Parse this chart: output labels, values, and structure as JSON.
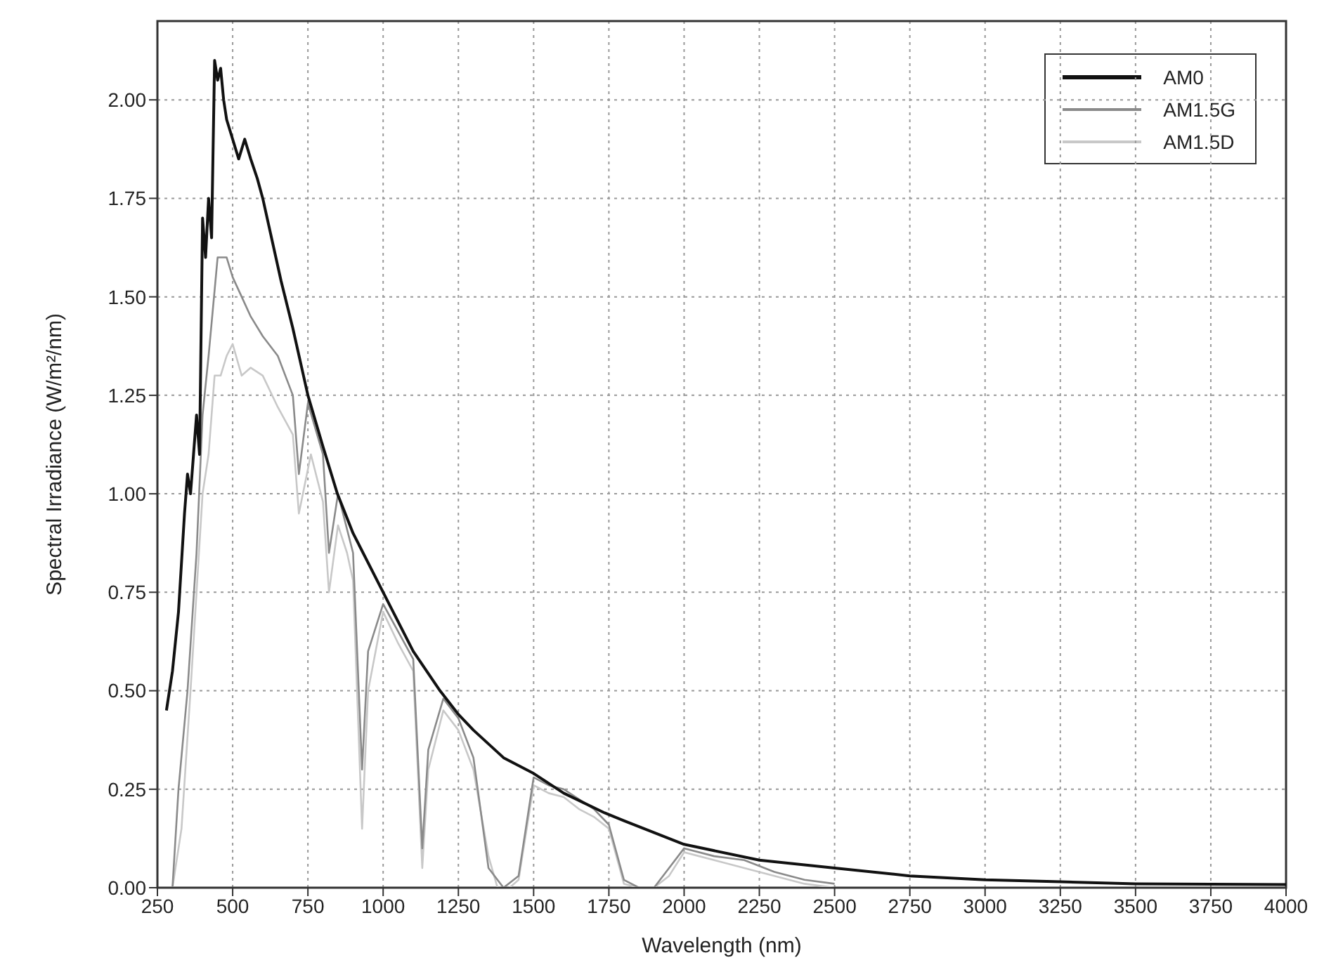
{
  "chart_data": {
    "type": "line",
    "xlabel": "Wavelength (nm)",
    "ylabel": "Spectral Irradiance (W/m²/nm)",
    "xlim": [
      250,
      4000
    ],
    "xticks": [
      250,
      500,
      750,
      1000,
      1250,
      1500,
      1750,
      2000,
      2250,
      2500,
      2750,
      3000,
      3250,
      3500,
      3750,
      4000
    ],
    "ylim": [
      0,
      2.2
    ],
    "yticks": [
      {
        "value": 0,
        "label": "0.00"
      },
      0.25,
      {
        "value": 0.5,
        "label": "0.50"
      },
      0.75,
      {
        "value": 1,
        "label": "1.00"
      },
      1.25,
      {
        "value": 1.5,
        "label": "1.50"
      },
      1.75,
      {
        "value": 2,
        "label": "2.00"
      }
    ],
    "grid": true,
    "legend": "top right",
    "marker": "none",
    "line_style": "solid",
    "series": [
      {
        "name": "AM1.5D",
        "color": "#c8c8c8",
        "x": [
          300,
          330,
          360,
          380,
          400,
          420,
          440,
          460,
          480,
          500,
          530,
          560,
          600,
          650,
          700,
          720,
          760,
          800,
          820,
          850,
          880,
          900,
          930,
          950,
          1000,
          1050,
          1100,
          1130,
          1150,
          1200,
          1250,
          1300,
          1350,
          1380,
          1420,
          1450,
          1500,
          1550,
          1600,
          1650,
          1700,
          1750,
          1800,
          1850,
          1900,
          1950,
          2000,
          2050,
          2100,
          2200,
          2300,
          2400,
          2500
        ],
        "values": [
          0,
          0.15,
          0.5,
          0.75,
          1.0,
          1.1,
          1.3,
          1.3,
          1.35,
          1.38,
          1.3,
          1.32,
          1.3,
          1.22,
          1.15,
          0.95,
          1.1,
          0.98,
          0.75,
          0.92,
          0.85,
          0.78,
          0.15,
          0.5,
          0.7,
          0.62,
          0.55,
          0.05,
          0.3,
          0.45,
          0.4,
          0.3,
          0.08,
          0,
          0,
          0.02,
          0.26,
          0.24,
          0.23,
          0.2,
          0.18,
          0.15,
          0.01,
          0,
          0,
          0.03,
          0.09,
          0.08,
          0.07,
          0.05,
          0.03,
          0.01,
          0
        ]
      },
      {
        "name": "AM1.5G",
        "color": "#8a8a8a",
        "x": [
          300,
          320,
          350,
          380,
          400,
          420,
          450,
          480,
          500,
          530,
          560,
          600,
          650,
          700,
          720,
          750,
          800,
          820,
          850,
          900,
          930,
          950,
          1000,
          1050,
          1100,
          1130,
          1150,
          1200,
          1250,
          1300,
          1350,
          1400,
          1450,
          1500,
          1550,
          1600,
          1700,
          1750,
          1800,
          1850,
          1900,
          1950,
          2000,
          2100,
          2200,
          2300,
          2400,
          2500
        ],
        "values": [
          0,
          0.25,
          0.5,
          0.85,
          1.2,
          1.35,
          1.6,
          1.6,
          1.55,
          1.5,
          1.45,
          1.4,
          1.35,
          1.25,
          1.05,
          1.23,
          1.1,
          0.85,
          1.0,
          0.85,
          0.3,
          0.6,
          0.72,
          0.65,
          0.58,
          0.1,
          0.35,
          0.48,
          0.43,
          0.33,
          0.05,
          0,
          0.03,
          0.28,
          0.26,
          0.25,
          0.2,
          0.16,
          0.02,
          0,
          0,
          0.05,
          0.1,
          0.08,
          0.07,
          0.04,
          0.02,
          0.01
        ]
      },
      {
        "name": "AM0",
        "color": "#111111",
        "x": [
          280,
          300,
          320,
          340,
          350,
          360,
          370,
          380,
          390,
          400,
          410,
          420,
          430,
          440,
          450,
          460,
          470,
          480,
          500,
          520,
          540,
          560,
          582,
          600,
          661,
          700,
          750,
          800,
          848,
          900,
          1000,
          1100,
          1189,
          1250,
          1300,
          1400,
          1500,
          1600,
          1736,
          1800,
          2000,
          2250,
          2500,
          2750,
          3000,
          3250,
          3500,
          3750,
          4000
        ],
        "values": [
          0.45,
          0.55,
          0.7,
          0.95,
          1.05,
          1.0,
          1.1,
          1.2,
          1.1,
          1.7,
          1.6,
          1.75,
          1.65,
          2.1,
          2.05,
          2.08,
          2.0,
          1.95,
          1.9,
          1.85,
          1.9,
          1.85,
          1.8,
          1.75,
          1.54,
          1.42,
          1.25,
          1.12,
          1.0,
          0.9,
          0.75,
          0.6,
          0.5,
          0.44,
          0.4,
          0.33,
          0.29,
          0.24,
          0.19,
          0.17,
          0.11,
          0.07,
          0.05,
          0.03,
          0.02,
          0.015,
          0.01,
          0.009,
          0.008
        ]
      }
    ]
  }
}
